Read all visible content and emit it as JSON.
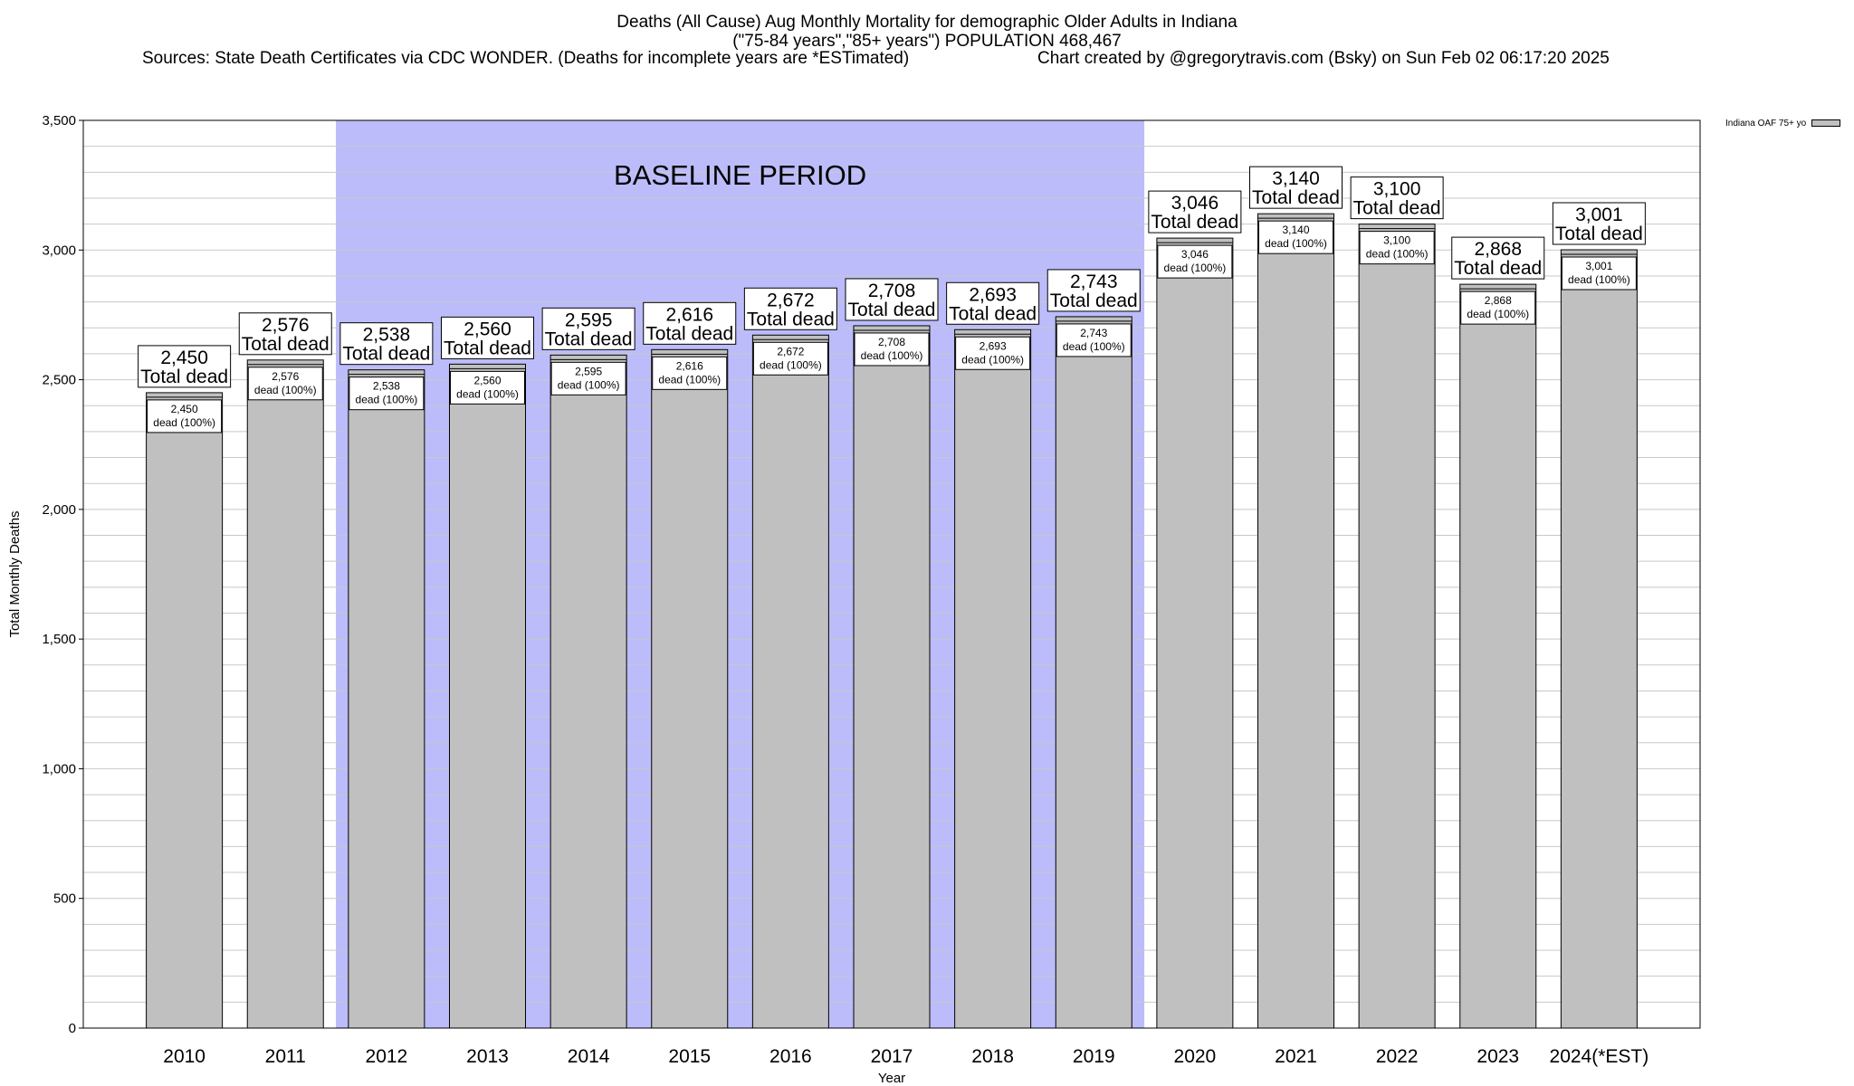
{
  "title": {
    "line1": "Deaths (All Cause) Aug Monthly Mortality for demographic Older Adults in Indiana",
    "line2": "(\"75-84 years\",\"85+ years\") POPULATION 468,467",
    "sources": "Sources: State Death Certificates via CDC WONDER. (Deaths for incomplete years are *ESTimated)",
    "credit": "Chart created by @gregorytravis.com (Bsky) on Sun Feb 02 06:17:20 2025"
  },
  "legend": {
    "label": "Indiana OAF 75+ yo"
  },
  "colors": {
    "bar": "#c0c0c0",
    "baseline_band": "#bcbcfb",
    "grid": "#c8c8c8"
  },
  "chart_data": {
    "type": "bar",
    "categories": [
      "2010",
      "2011",
      "2012",
      "2013",
      "2014",
      "2015",
      "2016",
      "2017",
      "2018",
      "2019",
      "2020",
      "2021",
      "2022",
      "2023",
      "2024(*EST)"
    ],
    "values": [
      2450,
      2576,
      2538,
      2560,
      2595,
      2616,
      2672,
      2708,
      2693,
      2743,
      3046,
      3140,
      3100,
      2868,
      3001
    ],
    "value_labels": [
      "2,450",
      "2,576",
      "2,538",
      "2,560",
      "2,595",
      "2,616",
      "2,672",
      "2,708",
      "2,693",
      "2,743",
      "3,046",
      "3,140",
      "3,100",
      "2,868",
      "3,001"
    ],
    "top_label_suffix": "Total dead",
    "inner_label_suffix": "dead (100%)",
    "xlabel": "Year",
    "ylabel": "Total Monthly Deaths",
    "ylim": [
      0,
      3500
    ],
    "yticks": [
      0,
      500,
      1000,
      1500,
      2000,
      2500,
      3000,
      3500
    ],
    "ytick_labels": [
      "0",
      "500",
      "1,000",
      "1,500",
      "2,000",
      "2,500",
      "3,000",
      "3,500"
    ],
    "minor_grid_step": 100,
    "grid": true,
    "legend_position": "top-right",
    "annotation": {
      "text": "BASELINE PERIOD",
      "start_category": "2012",
      "end_category": "2019"
    }
  }
}
